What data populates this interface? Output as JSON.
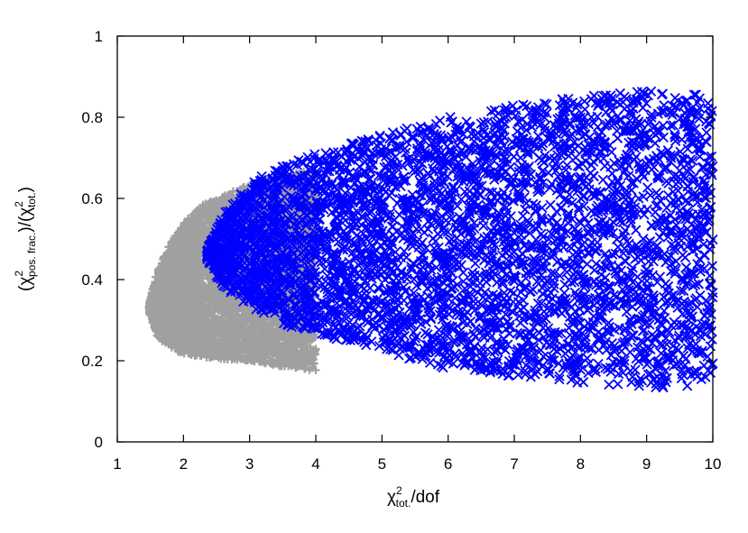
{
  "chart_data": {
    "type": "scatter",
    "title": "",
    "xlabel": {
      "base": "χ",
      "sup": "2",
      "sub": "tot.",
      "tail": "/dof"
    },
    "ylabel": {
      "open1": "(χ",
      "sup1": "2",
      "sub1": "pos. frac.",
      "mid": ")/(χ",
      "sup2": "2",
      "sub2": "tot.",
      "close": ")"
    },
    "xlim": [
      1,
      10
    ],
    "ylim": [
      0,
      1
    ],
    "xticks": [
      "1",
      "2",
      "3",
      "4",
      "5",
      "6",
      "7",
      "8",
      "9",
      "10"
    ],
    "yticks": [
      "0",
      "0.2",
      "0.4",
      "0.6",
      "0.8",
      "1"
    ],
    "grid": false,
    "series": [
      {
        "marker": "plus",
        "color": "#a0a0a0",
        "region_lower": [
          [
            1.48,
            0.32
          ],
          [
            1.6,
            0.26
          ],
          [
            1.8,
            0.23
          ],
          [
            2.0,
            0.215
          ],
          [
            2.5,
            0.205
          ],
          [
            3.0,
            0.2
          ],
          [
            3.5,
            0.185
          ],
          [
            4.0,
            0.175
          ],
          [
            4.5,
            0.165
          ],
          [
            5.0,
            0.165
          ],
          [
            5.5,
            0.17
          ],
          [
            6.0,
            0.18
          ]
        ],
        "region_upper": [
          [
            1.48,
            0.34
          ],
          [
            1.6,
            0.42
          ],
          [
            1.8,
            0.49
          ],
          [
            2.0,
            0.54
          ],
          [
            2.3,
            0.585
          ],
          [
            2.7,
            0.615
          ],
          [
            3.0,
            0.635
          ],
          [
            3.5,
            0.66
          ],
          [
            4.0,
            0.67
          ]
        ]
      },
      {
        "marker": "x",
        "color": "#0000ff",
        "region_lower": [
          [
            2.35,
            0.45
          ],
          [
            2.6,
            0.38
          ],
          [
            3.0,
            0.33
          ],
          [
            3.5,
            0.29
          ],
          [
            4.0,
            0.265
          ],
          [
            4.5,
            0.245
          ],
          [
            5.0,
            0.225
          ],
          [
            5.5,
            0.2
          ],
          [
            6.0,
            0.18
          ],
          [
            6.5,
            0.17
          ],
          [
            7.0,
            0.16
          ],
          [
            7.5,
            0.155
          ],
          [
            8.0,
            0.145
          ],
          [
            8.5,
            0.14
          ],
          [
            9.0,
            0.135
          ],
          [
            9.5,
            0.13
          ],
          [
            10.0,
            0.14
          ]
        ],
        "region_upper": [
          [
            2.35,
            0.47
          ],
          [
            2.6,
            0.56
          ],
          [
            3.0,
            0.64
          ],
          [
            3.5,
            0.68
          ],
          [
            4.0,
            0.71
          ],
          [
            4.5,
            0.735
          ],
          [
            5.0,
            0.76
          ],
          [
            5.5,
            0.78
          ],
          [
            6.0,
            0.8
          ],
          [
            6.5,
            0.815
          ],
          [
            7.0,
            0.83
          ],
          [
            7.5,
            0.84
          ],
          [
            8.0,
            0.85
          ],
          [
            8.5,
            0.86
          ],
          [
            9.0,
            0.865
          ],
          [
            9.5,
            0.865
          ],
          [
            10.0,
            0.865
          ]
        ]
      }
    ]
  }
}
